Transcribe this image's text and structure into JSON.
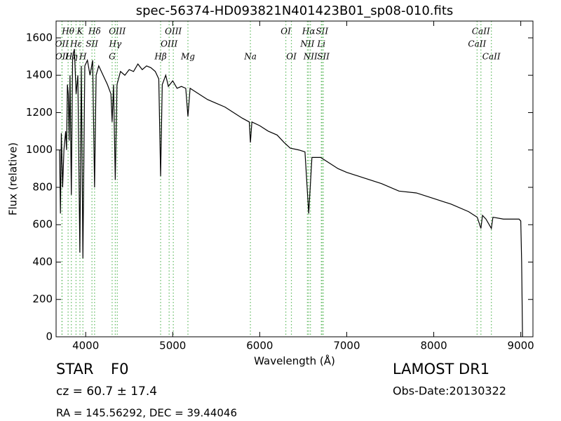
{
  "chart_data": {
    "type": "line",
    "title": "spec-56374-HD093821N401423B01_sp08-010.fits",
    "xlabel": "Wavelength (Å)",
    "ylabel": "Flux (relative)",
    "xlim": [
      3660,
      9140
    ],
    "ylim": [
      0,
      1690
    ],
    "xticks": [
      4000,
      5000,
      6000,
      7000,
      8000,
      9000
    ],
    "yticks": [
      0,
      200,
      400,
      600,
      800,
      1000,
      1200,
      1400,
      1600
    ],
    "line_color": "#5cb85c",
    "series": [
      {
        "color": "#000000",
        "x": [
          3700,
          3710,
          3720,
          3735,
          3750,
          3770,
          3780,
          3790,
          3800,
          3810,
          3820,
          3835,
          3850,
          3870,
          3890,
          3910,
          3933,
          3950,
          3968,
          3990,
          4020,
          4050,
          4080,
          4102,
          4120,
          4150,
          4200,
          4250,
          4290,
          4304,
          4320,
          4340,
          4360,
          4400,
          4450,
          4500,
          4550,
          4600,
          4650,
          4700,
          4750,
          4800,
          4840,
          4861,
          4880,
          4920,
          4950,
          5000,
          5050,
          5100,
          5150,
          5175,
          5200,
          5300,
          5400,
          5500,
          5600,
          5700,
          5800,
          5880,
          5893,
          5910,
          6000,
          6100,
          6200,
          6280,
          6350,
          6450,
          6520,
          6563,
          6600,
          6700,
          6800,
          6900,
          7000,
          7200,
          7400,
          7600,
          7800,
          8000,
          8200,
          8400,
          8500,
          8542,
          8560,
          8600,
          8662,
          8680,
          8800,
          8900,
          8980,
          9000,
          9010,
          9020
        ],
        "values": [
          1000,
          660,
          1090,
          800,
          1000,
          1100,
          1000,
          1350,
          1300,
          1050,
          1400,
          760,
          1500,
          1540,
          1300,
          1400,
          450,
          1450,
          420,
          1450,
          1480,
          1400,
          1480,
          800,
          1400,
          1450,
          1400,
          1350,
          1300,
          1150,
          1350,
          840,
          1350,
          1420,
          1400,
          1430,
          1420,
          1460,
          1430,
          1450,
          1440,
          1420,
          1380,
          860,
          1350,
          1400,
          1340,
          1370,
          1330,
          1340,
          1330,
          1180,
          1330,
          1300,
          1270,
          1250,
          1230,
          1200,
          1170,
          1150,
          1040,
          1150,
          1130,
          1100,
          1080,
          1040,
          1010,
          1000,
          990,
          660,
          960,
          960,
          930,
          900,
          880,
          850,
          820,
          780,
          770,
          740,
          710,
          670,
          640,
          580,
          650,
          630,
          580,
          640,
          630,
          630,
          630,
          620,
          400,
          0
        ]
      }
    ],
    "spectral_lines": [
      [
        {
          "wavelength": 3798,
          "label": "Hθ"
        },
        {
          "wavelength": 3934,
          "label": "K"
        },
        {
          "wavelength": 4102,
          "label": "Hδ"
        },
        {
          "wavelength": 4363,
          "label": "OIII"
        },
        {
          "wavelength": 5007,
          "label": "OIII"
        },
        {
          "wavelength": 6300,
          "label": "OI"
        },
        {
          "wavelength": 6563,
          "label": "Hα"
        },
        {
          "wavelength": 6716,
          "label": "SII"
        },
        {
          "wavelength": 8542,
          "label": "CaII"
        }
      ],
      [
        {
          "wavelength": 3727,
          "label": "OII"
        },
        {
          "wavelength": 3889,
          "label": "Hε"
        },
        {
          "wavelength": 4072,
          "label": "SII"
        },
        {
          "wavelength": 4340,
          "label": "Hγ"
        },
        {
          "wavelength": 4959,
          "label": "OIII"
        },
        {
          "wavelength": 6548,
          "label": "NII"
        },
        {
          "wavelength": 6708,
          "label": "Li"
        },
        {
          "wavelength": 8498,
          "label": "CaII"
        }
      ],
      [
        {
          "wavelength": 3729,
          "label": "OII"
        },
        {
          "wavelength": 3835,
          "label": "Hη"
        },
        {
          "wavelength": 3968,
          "label": "H"
        },
        {
          "wavelength": 4304,
          "label": "G"
        },
        {
          "wavelength": 4861,
          "label": "Hβ"
        },
        {
          "wavelength": 5175,
          "label": "Mg"
        },
        {
          "wavelength": 5893,
          "label": "Na"
        },
        {
          "wavelength": 6364,
          "label": "OI"
        },
        {
          "wavelength": 6583,
          "label": "NII"
        },
        {
          "wavelength": 6731,
          "label": "SII"
        },
        {
          "wavelength": 8662,
          "label": "CaII"
        }
      ]
    ],
    "footer": {
      "class": "STAR",
      "subclass": "F0",
      "redshift": "cz = 60.7 ± 17.4",
      "coordinates": "RA = 145.56292, DEC = 39.44046",
      "survey": "LAMOST DR1",
      "obs_date": "Obs-Date:20130322"
    }
  }
}
